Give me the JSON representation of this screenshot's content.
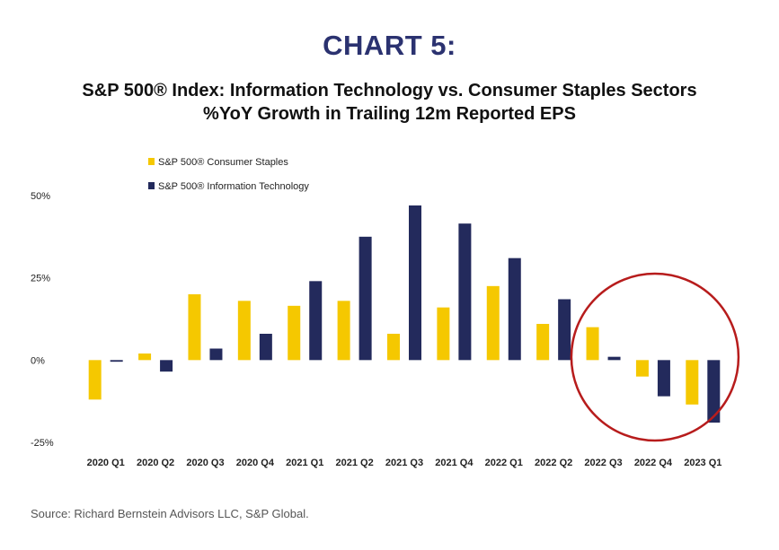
{
  "header": {
    "chart_label": "CHART 5:",
    "title_line1": "S&P 500® Index: Information Technology vs. Consumer Staples Sectors",
    "title_line2": "%YoY Growth in Trailing 12m Reported EPS"
  },
  "source": "Source: Richard Bernstein Advisors LLC, S&P Global.",
  "colors": {
    "staples": "#f5c800",
    "tech": "#232a5c",
    "highlight_circle": "#b71c1c"
  },
  "chart_data": {
    "type": "bar",
    "title": "S&P 500® Index: Information Technology vs. Consumer Staples Sectors",
    "subtitle": "%YoY Growth in Trailing 12m Reported EPS",
    "categories": [
      "2020 Q1",
      "2020 Q2",
      "2020 Q3",
      "2020 Q4",
      "2021 Q1",
      "2021 Q2",
      "2021 Q3",
      "2021 Q4",
      "2022 Q1",
      "2022 Q2",
      "2022 Q3",
      "2022 Q4",
      "2023 Q1"
    ],
    "series": [
      {
        "name": "S&P 500® Consumer Staples",
        "values": [
          -12,
          2,
          20,
          18,
          16.5,
          18,
          8,
          16,
          22.5,
          11,
          10,
          -5,
          -13.5
        ]
      },
      {
        "name": "S&P 500® Information Technology",
        "values": [
          -0.5,
          -3.5,
          3.5,
          8,
          24,
          37.5,
          47,
          41.5,
          31,
          18.5,
          1,
          -11,
          -19
        ]
      }
    ],
    "yticks": [
      "50%",
      "25%",
      "0%",
      "-25%"
    ],
    "ytick_values": [
      50,
      25,
      0,
      -25
    ],
    "ylim": [
      -25,
      50
    ],
    "grid": false,
    "legend_position": "top-left",
    "highlight": {
      "shape": "circle",
      "categories": [
        "2022 Q3",
        "2022 Q4",
        "2023 Q1"
      ]
    }
  }
}
